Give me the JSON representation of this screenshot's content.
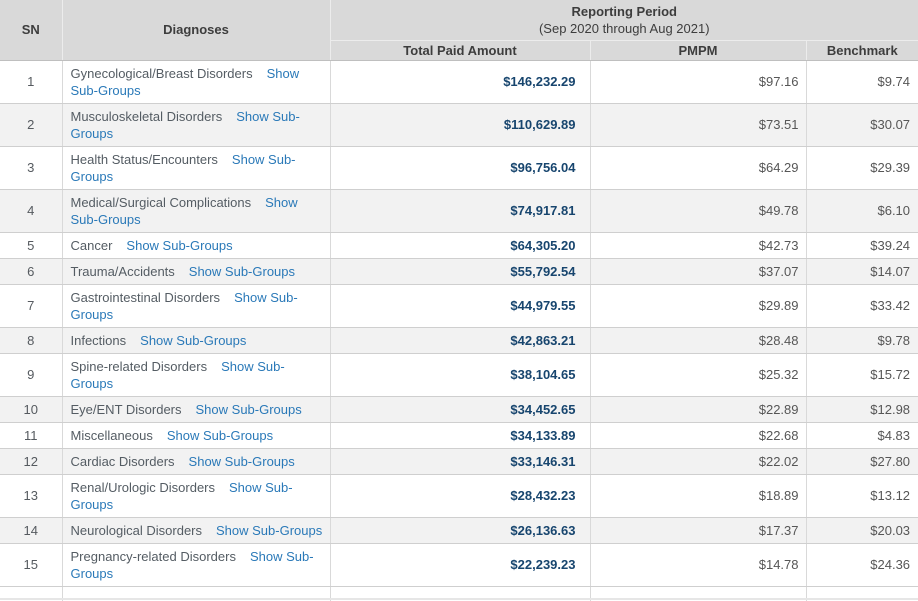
{
  "table": {
    "columns": {
      "sn": "SN",
      "diagnoses": "Diagnoses",
      "total_paid": "Total Paid Amount",
      "pmpm": "PMPM",
      "benchmark": "Benchmark"
    },
    "reporting_period": {
      "title": "Reporting Period",
      "subtitle": "(Sep 2020 through Aug 2021)"
    },
    "rows": [
      {
        "sn": "1",
        "diagnosis": "Gynecological/Breast Disorders",
        "link": "Show Sub-Groups",
        "total_paid": "$146,232.29",
        "pmpm": "$97.16",
        "benchmark": "$9.74"
      },
      {
        "sn": "2",
        "diagnosis": "Musculoskeletal Disorders",
        "link": "Show Sub-Groups",
        "total_paid": "$110,629.89",
        "pmpm": "$73.51",
        "benchmark": "$30.07"
      },
      {
        "sn": "3",
        "diagnosis": "Health Status/Encounters",
        "link": "Show Sub-Groups",
        "total_paid": "$96,756.04",
        "pmpm": "$64.29",
        "benchmark": "$29.39"
      },
      {
        "sn": "4",
        "diagnosis": "Medical/Surgical Complications",
        "link": "Show Sub-Groups",
        "total_paid": "$74,917.81",
        "pmpm": "$49.78",
        "benchmark": "$6.10"
      },
      {
        "sn": "5",
        "diagnosis": "Cancer",
        "link": "Show Sub-Groups",
        "total_paid": "$64,305.20",
        "pmpm": "$42.73",
        "benchmark": "$39.24"
      },
      {
        "sn": "6",
        "diagnosis": "Trauma/Accidents",
        "link": "Show Sub-Groups",
        "total_paid": "$55,792.54",
        "pmpm": "$37.07",
        "benchmark": "$14.07"
      },
      {
        "sn": "7",
        "diagnosis": "Gastrointestinal Disorders",
        "link": "Show Sub-Groups",
        "total_paid": "$44,979.55",
        "pmpm": "$29.89",
        "benchmark": "$33.42"
      },
      {
        "sn": "8",
        "diagnosis": "Infections",
        "link": "Show Sub-Groups",
        "total_paid": "$42,863.21",
        "pmpm": "$28.48",
        "benchmark": "$9.78"
      },
      {
        "sn": "9",
        "diagnosis": "Spine-related Disorders",
        "link": "Show Sub-Groups",
        "total_paid": "$38,104.65",
        "pmpm": "$25.32",
        "benchmark": "$15.72"
      },
      {
        "sn": "10",
        "diagnosis": "Eye/ENT Disorders",
        "link": "Show Sub-Groups",
        "total_paid": "$34,452.65",
        "pmpm": "$22.89",
        "benchmark": "$12.98"
      },
      {
        "sn": "11",
        "diagnosis": "Miscellaneous",
        "link": "Show Sub-Groups",
        "total_paid": "$34,133.89",
        "pmpm": "$22.68",
        "benchmark": "$4.83"
      },
      {
        "sn": "12",
        "diagnosis": "Cardiac Disorders",
        "link": "Show Sub-Groups",
        "total_paid": "$33,146.31",
        "pmpm": "$22.02",
        "benchmark": "$27.80"
      },
      {
        "sn": "13",
        "diagnosis": "Renal/Urologic Disorders",
        "link": "Show Sub-Groups",
        "total_paid": "$28,432.23",
        "pmpm": "$18.89",
        "benchmark": "$13.12"
      },
      {
        "sn": "14",
        "diagnosis": "Neurological Disorders",
        "link": "Show Sub-Groups",
        "total_paid": "$26,136.63",
        "pmpm": "$17.37",
        "benchmark": "$20.03"
      },
      {
        "sn": "15",
        "diagnosis": "Pregnancy-related Disorders",
        "link": "Show Sub-Groups",
        "total_paid": "$22,239.23",
        "pmpm": "$14.78",
        "benchmark": "$24.36"
      }
    ]
  },
  "colors": {
    "header_bg": "#d9d9d9",
    "row_alt_bg": "#f2f2f2",
    "link_blue": "#2a79b8",
    "amount_navy": "#17456e",
    "body_text": "#555a5f"
  }
}
